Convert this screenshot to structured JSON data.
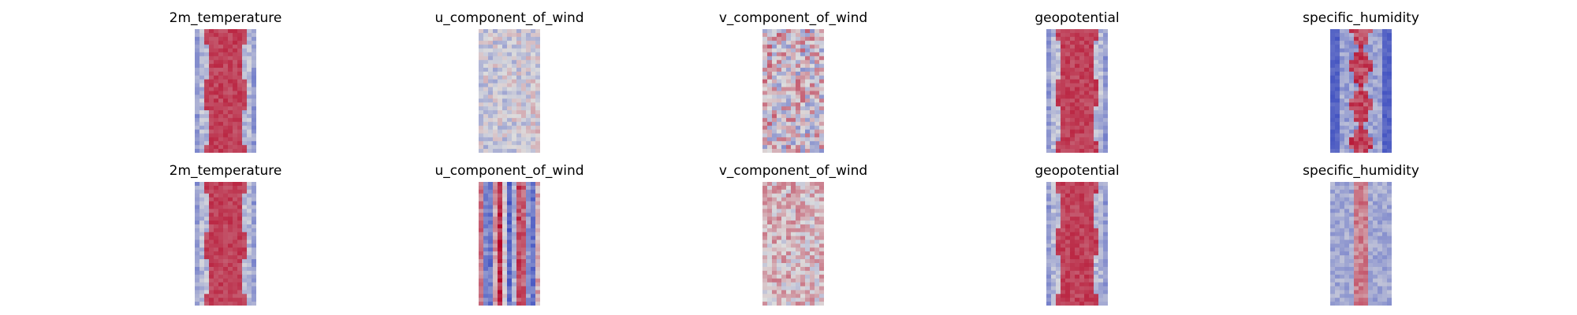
{
  "chart_data": {
    "type": "heatmap",
    "colormap": "coolwarm",
    "colors": {
      "low": "#3b4cc0",
      "mid": "#dddddd",
      "high": "#b40426"
    },
    "axes_visible": false,
    "rows": [
      {
        "panels": [
          {
            "title": "2m_temperature",
            "pattern": "central-band-warm"
          },
          {
            "title": "u_component_of_wind",
            "pattern": "wavy-mixed"
          },
          {
            "title": "v_component_of_wind",
            "pattern": "noisy-mixed"
          },
          {
            "title": "geopotential",
            "pattern": "central-band-warm"
          },
          {
            "title": "specific_humidity",
            "pattern": "narrow-band-cold-edges"
          }
        ]
      },
      {
        "panels": [
          {
            "title": "2m_temperature",
            "pattern": "central-band-warm"
          },
          {
            "title": "u_component_of_wind",
            "pattern": "vertical-stripes"
          },
          {
            "title": "v_component_of_wind",
            "pattern": "noisy-light"
          },
          {
            "title": "geopotential",
            "pattern": "central-band-warm"
          },
          {
            "title": "specific_humidity",
            "pattern": "narrow-band-cool"
          }
        ]
      }
    ]
  }
}
